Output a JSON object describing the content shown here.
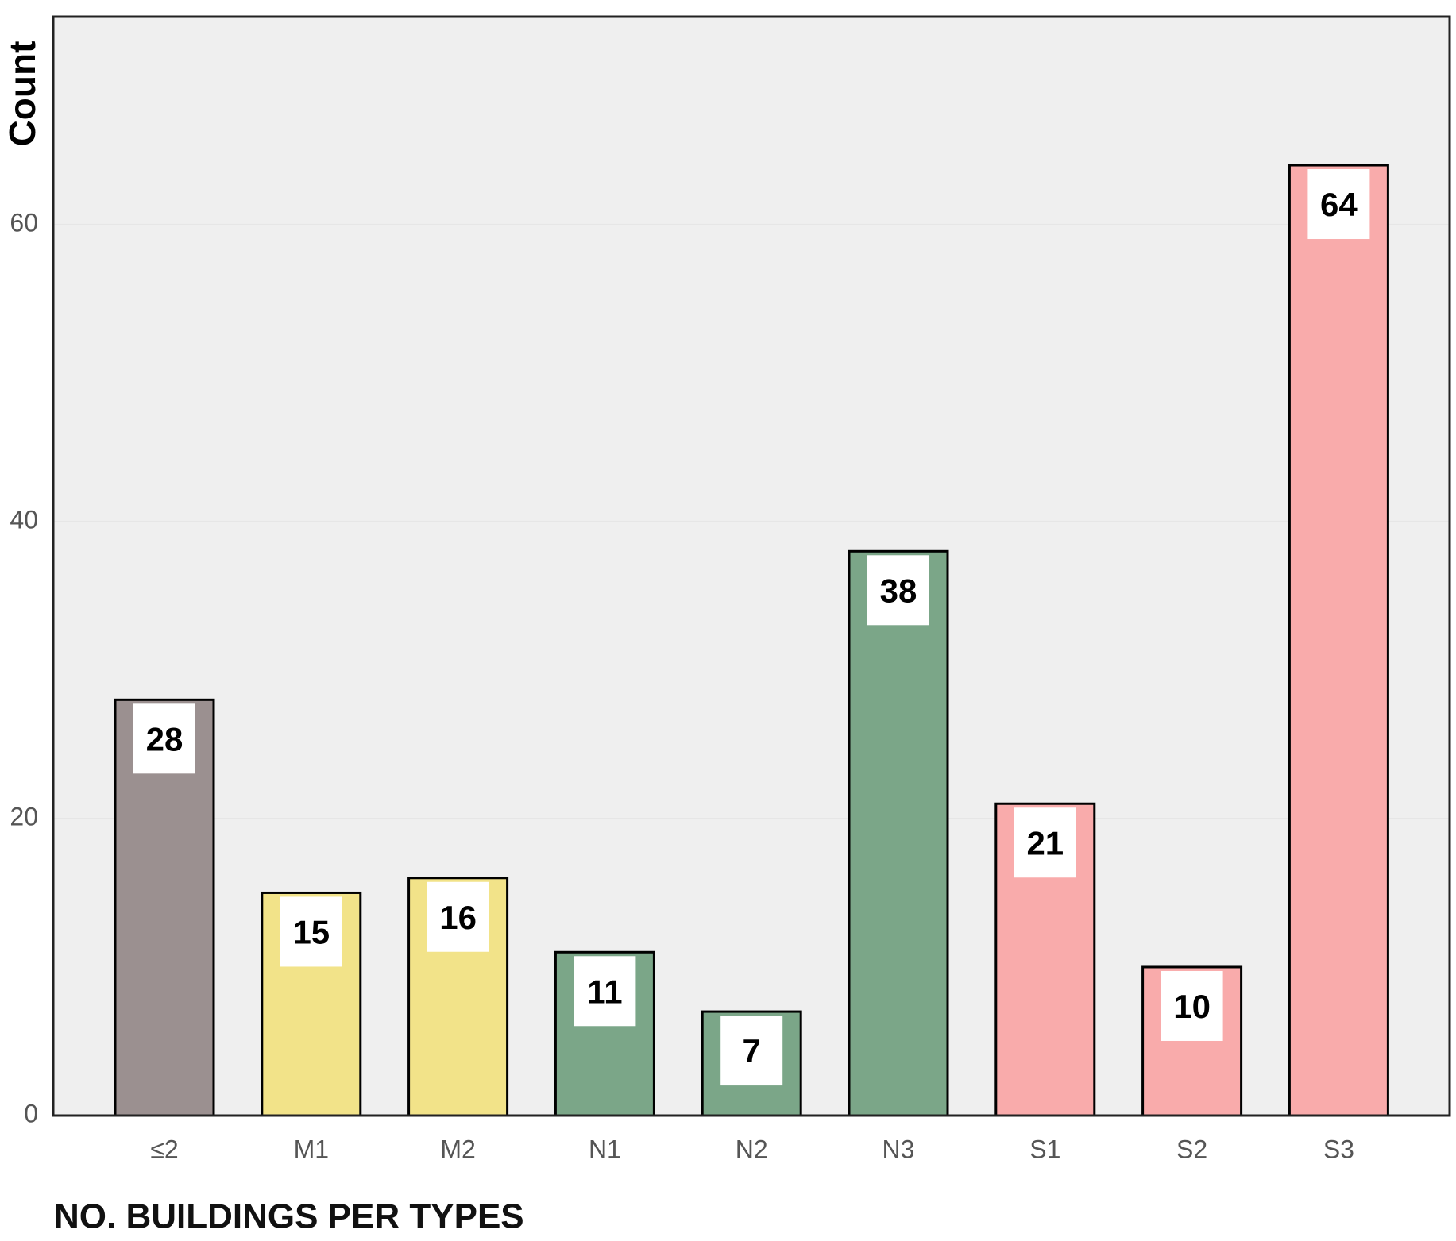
{
  "chart_data": {
    "type": "bar",
    "title": "NO. BUILDINGS PER TYPES",
    "y_label": "Count",
    "categories": [
      "≤2",
      "M1",
      "M2",
      "N1",
      "N2",
      "N3",
      "S1",
      "S2",
      "S3"
    ],
    "values": [
      28,
      15,
      16,
      11,
      7,
      38,
      21,
      10,
      64
    ],
    "colors": [
      "#9b9090",
      "#f2e389",
      "#f2e389",
      "#7ba688",
      "#7ba688",
      "#7ba688",
      "#f9abab",
      "#f9abab",
      "#f9abab"
    ],
    "ylim": [
      0,
      74
    ],
    "yticks": [
      0,
      20,
      40,
      60
    ],
    "grid": true
  }
}
